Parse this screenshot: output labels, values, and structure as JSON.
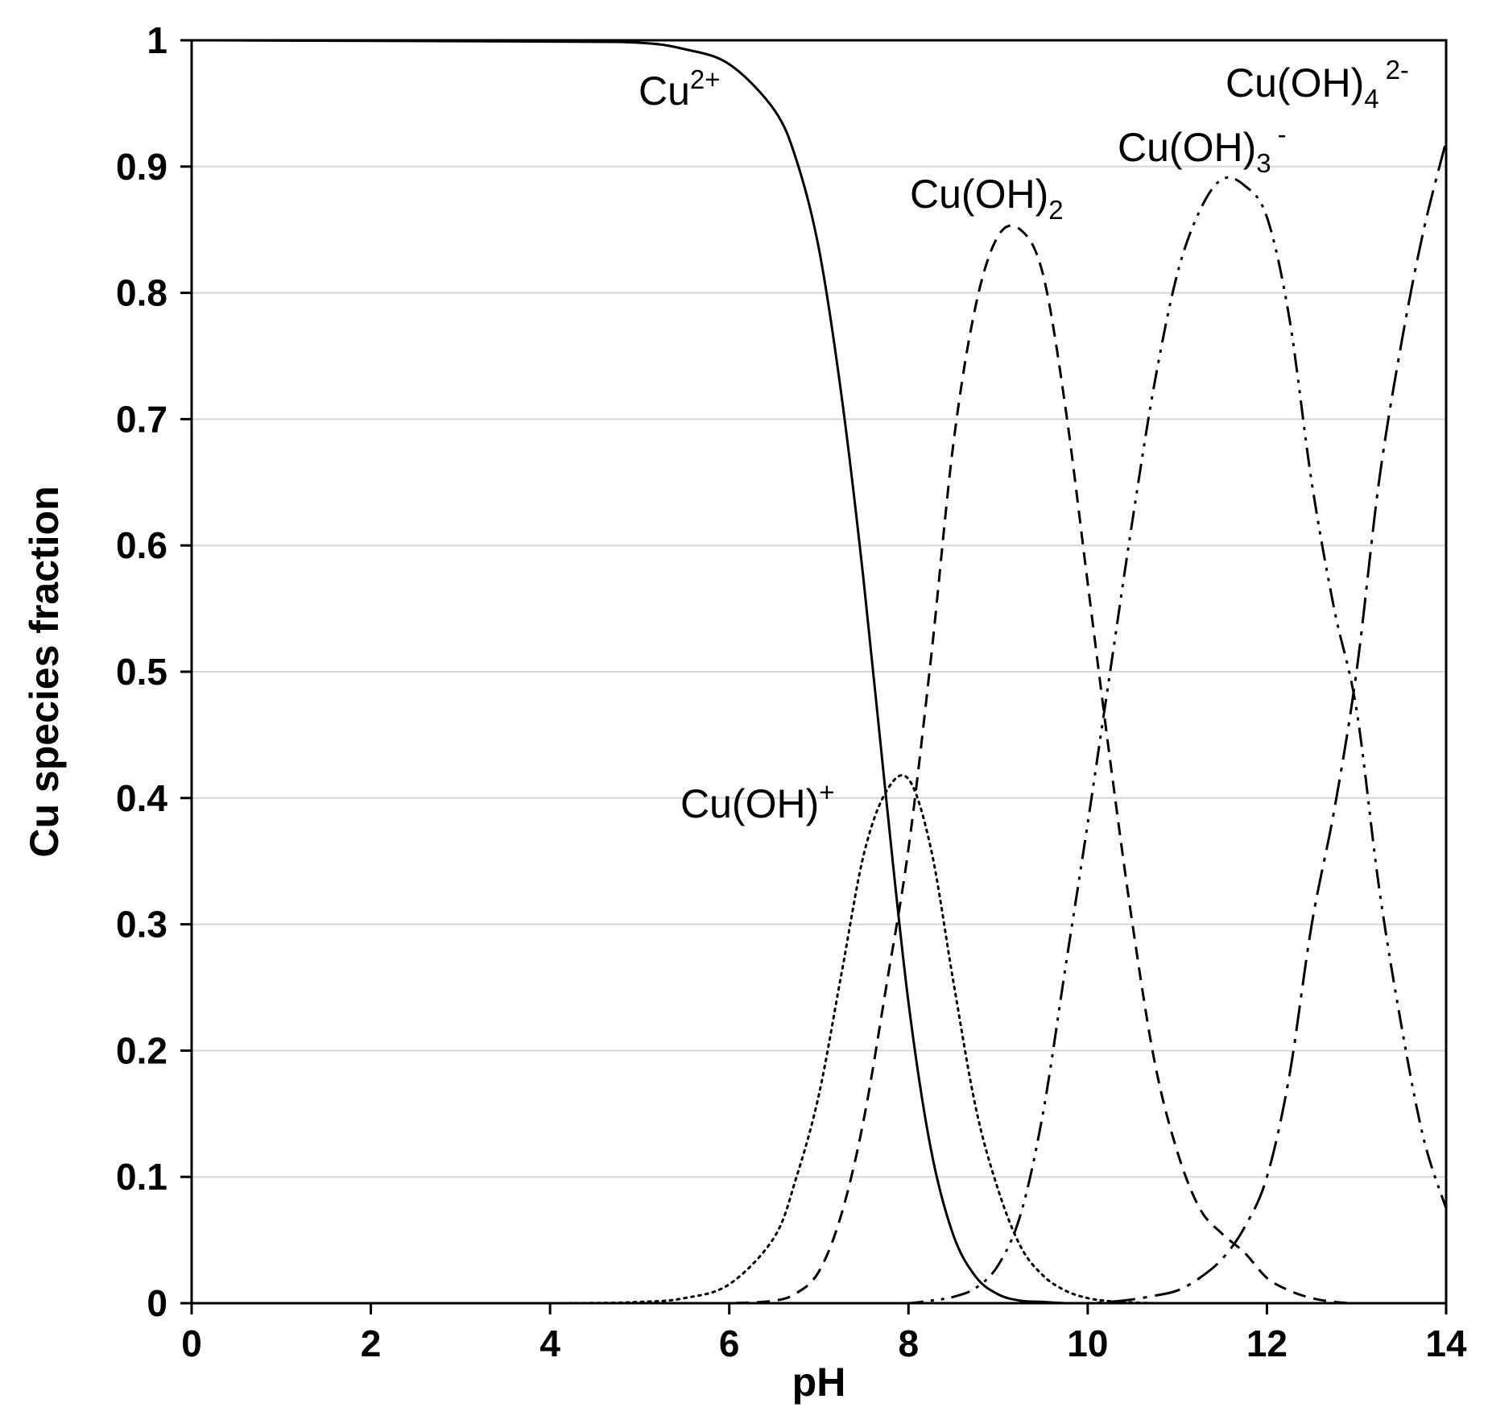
{
  "chart_data": {
    "type": "line",
    "title": "",
    "xlabel": "pH",
    "ylabel": "Cu species fraction",
    "xlim": [
      0,
      14
    ],
    "ylim": [
      0,
      1
    ],
    "xticks": [
      "0",
      "2",
      "4",
      "6",
      "8",
      "10",
      "12",
      "14"
    ],
    "yticks": [
      "0",
      "0.1",
      "0.2",
      "0.3",
      "0.4",
      "0.5",
      "0.6",
      "0.7",
      "0.8",
      "0.9",
      "1"
    ],
    "grid": "horizontal",
    "legend": "none",
    "line_color": "#000000",
    "grid_color": "#d6d6d6",
    "x": [
      0,
      4.0,
      5.0,
      5.5,
      6.0,
      6.5,
      6.75,
      7.0,
      7.25,
      7.5,
      7.75,
      8.0,
      8.25,
      8.5,
      8.75,
      9.0,
      9.25,
      9.5,
      9.75,
      10.0,
      10.25,
      10.5,
      10.75,
      11.0,
      11.25,
      11.5,
      11.75,
      12.0,
      12.25,
      12.5,
      12.75,
      13.0,
      13.25,
      13.5,
      13.75,
      14.0
    ],
    "series": [
      {
        "name": "Cu²⁺",
        "label": {
          "base": "Cu",
          "sup": "2+",
          "sub": "",
          "sup2": ""
        },
        "dash": "solid",
        "values": [
          1.0,
          0.999,
          0.998,
          0.993,
          0.981,
          0.945,
          0.905,
          0.835,
          0.72,
          0.572,
          0.4,
          0.238,
          0.122,
          0.054,
          0.021,
          0.007,
          0.002,
          0.001,
          0.0,
          0.0,
          0.0,
          0.0,
          0.0,
          0.0,
          0.0,
          0.0,
          0.0,
          0.0,
          0.0,
          0.0,
          0.0,
          0.0,
          0.0,
          0.0,
          0.0,
          0.0
        ]
      },
      {
        "name": "Cu(OH)⁺",
        "label": {
          "base": "Cu(OH)",
          "sup": "+",
          "sub": "",
          "sup2": ""
        },
        "dash": "dotted",
        "values": [
          0.0,
          0.0,
          0.001,
          0.004,
          0.015,
          0.052,
          0.1,
          0.165,
          0.26,
          0.355,
          0.405,
          0.415,
          0.36,
          0.255,
          0.155,
          0.09,
          0.045,
          0.022,
          0.01,
          0.004,
          0.0015,
          0.0005,
          0.0,
          0.0,
          0.0,
          0.0,
          0.0,
          0.0,
          0.0,
          0.0,
          0.0,
          0.0,
          0.0,
          0.0,
          0.0,
          0.0
        ]
      },
      {
        "name": "Cu(OH)₂",
        "label": {
          "base": "Cu(OH)",
          "sup": "",
          "sub": "2",
          "sup2": ""
        },
        "dash": "dashed",
        "values": [
          0.0,
          0.0,
          0.0,
          0.0,
          0.0,
          0.002,
          0.008,
          0.025,
          0.07,
          0.145,
          0.25,
          0.36,
          0.51,
          0.68,
          0.79,
          0.845,
          0.85,
          0.815,
          0.71,
          0.57,
          0.43,
          0.3,
          0.19,
          0.12,
          0.075,
          0.055,
          0.04,
          0.02,
          0.01,
          0.004,
          0.001,
          0.0,
          0.0,
          0.0,
          0.0,
          0.0
        ]
      },
      {
        "name": "Cu(OH)₃⁻",
        "label": {
          "base": "Cu(OH)",
          "sup": "",
          "sub": "3",
          "sup2": "-"
        },
        "dash": "dash-dot-dot",
        "values": [
          0.0,
          0.0,
          0.0,
          0.0,
          0.0,
          0.0,
          0.0,
          0.0,
          0.0,
          0.0,
          0.0,
          0.0,
          0.002,
          0.005,
          0.012,
          0.03,
          0.07,
          0.15,
          0.265,
          0.38,
          0.5,
          0.62,
          0.73,
          0.815,
          0.865,
          0.89,
          0.885,
          0.86,
          0.78,
          0.65,
          0.55,
          0.47,
          0.33,
          0.22,
          0.13,
          0.075
        ]
      },
      {
        "name": "Cu(OH)₄²⁻",
        "label": {
          "base": "Cu(OH)",
          "sup": "",
          "sub": "4",
          "sup2": "2-"
        },
        "dash": "dash-dot",
        "values": [
          0.0,
          0.0,
          0.0,
          0.0,
          0.0,
          0.0,
          0.0,
          0.0,
          0.0,
          0.0,
          0.0,
          0.0,
          0.0,
          0.0,
          0.0,
          0.0,
          0.0,
          0.0,
          0.0,
          0.0,
          0.001,
          0.003,
          0.006,
          0.01,
          0.02,
          0.035,
          0.06,
          0.1,
          0.18,
          0.3,
          0.39,
          0.5,
          0.65,
          0.76,
          0.85,
          0.92
        ]
      }
    ]
  }
}
